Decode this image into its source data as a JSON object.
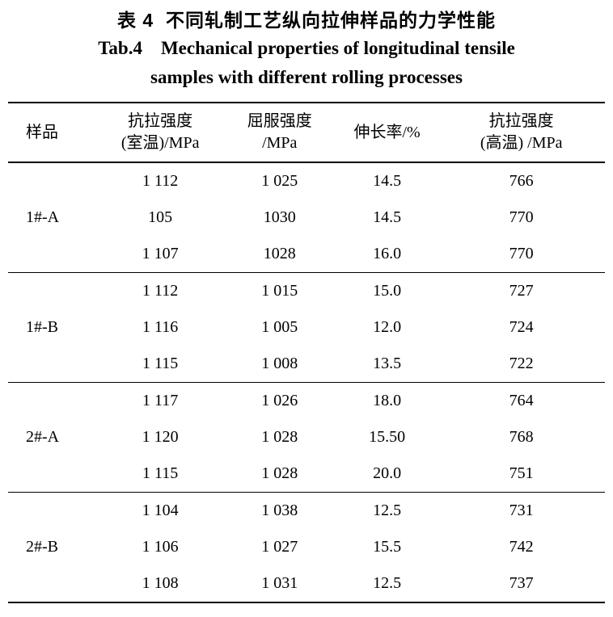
{
  "page": {
    "title_zh": "表 4  不同轧制工艺纵向拉伸样品的力学性能",
    "title_en_line1": "Tab.4    Mechanical properties of longitudinal tensile",
    "title_en_line2": "samples with different rolling processes"
  },
  "table": {
    "headers": {
      "sample": "样品",
      "tensile_rt_line1": "抗拉强度",
      "tensile_rt_line2": "(室温)/MPa",
      "yield_line1": "屈服强度",
      "yield_line2": "/MPa",
      "elongation": "伸长率/%",
      "tensile_ht_line1": "抗拉强度",
      "tensile_ht_line2": "(高温) /MPa"
    },
    "groups": [
      {
        "sample": "1#-A",
        "rows": [
          [
            "1 112",
            "1 025",
            "14.5",
            "766"
          ],
          [
            "105",
            "1030",
            "14.5",
            "770"
          ],
          [
            "1 107",
            "1028",
            "16.0",
            "770"
          ]
        ]
      },
      {
        "sample": "1#-B",
        "rows": [
          [
            "1 112",
            "1 015",
            "15.0",
            "727"
          ],
          [
            "1 116",
            "1 005",
            "12.0",
            "724"
          ],
          [
            "1 115",
            "1 008",
            "13.5",
            "722"
          ]
        ]
      },
      {
        "sample": "2#-A",
        "rows": [
          [
            "1 117",
            "1 026",
            "18.0",
            "764"
          ],
          [
            "1 120",
            "1 028",
            "15.50",
            "768"
          ],
          [
            "1 115",
            "1 028",
            "20.0",
            "751"
          ]
        ]
      },
      {
        "sample": "2#-B",
        "rows": [
          [
            "1 104",
            "1 038",
            "12.5",
            "731"
          ],
          [
            "1 106",
            "1 027",
            "15.5",
            "742"
          ],
          [
            "1 108",
            "1 031",
            "12.5",
            "737"
          ]
        ]
      }
    ]
  }
}
